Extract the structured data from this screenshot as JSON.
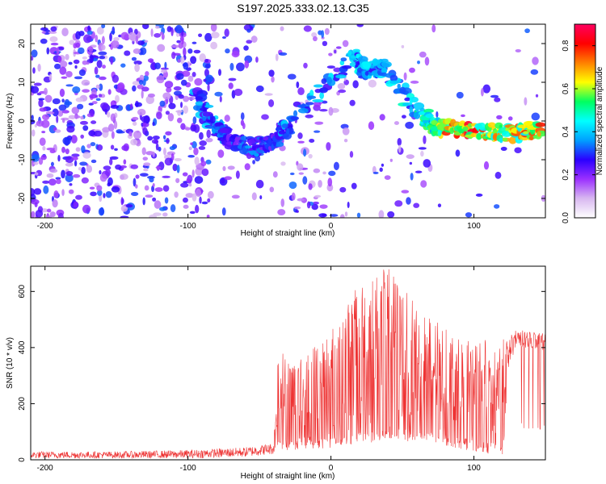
{
  "title": "S197.2025.333.02.13.C35",
  "chart_data": [
    {
      "type": "heatmap",
      "name": "spectrogram",
      "xlabel": "Height of straight line (km)",
      "ylabel": "Frequency (Hz)",
      "xlim": [
        -210,
        150
      ],
      "ylim": [
        -25,
        25
      ],
      "xticks": [
        -200,
        -100,
        0,
        100
      ],
      "yticks": [
        -20,
        -10,
        0,
        10,
        20
      ],
      "colorbar": {
        "label": "Normalized spectral amplitude",
        "range": [
          0,
          0.9
        ],
        "ticks": [
          0.0,
          0.2,
          0.4,
          0.6,
          0.8
        ],
        "colors": [
          "#ffffff",
          "#d8b8f0",
          "#9b30ff",
          "#2a00ff",
          "#00a0ff",
          "#00ffff",
          "#00ff60",
          "#ffff00",
          "#ff8000",
          "#ff0000",
          "#ff0060"
        ]
      },
      "ridge": [
        {
          "x": -95,
          "f": 7,
          "amp": 0.35
        },
        {
          "x": -80,
          "f": -2,
          "amp": 0.4
        },
        {
          "x": -70,
          "f": -5,
          "amp": 0.3
        },
        {
          "x": -55,
          "f": -7,
          "amp": 0.35
        },
        {
          "x": -40,
          "f": -5,
          "amp": 0.3
        },
        {
          "x": -30,
          "f": -1,
          "amp": 0.4
        },
        {
          "x": 15,
          "f": 17,
          "amp": 0.4
        },
        {
          "x": 25,
          "f": 13,
          "amp": 0.45
        },
        {
          "x": 35,
          "f": 14,
          "amp": 0.4
        },
        {
          "x": 65,
          "f": 1,
          "amp": 0.5
        },
        {
          "x": 75,
          "f": -2,
          "amp": 0.6
        },
        {
          "x": 90,
          "f": -2,
          "amp": 0.85
        },
        {
          "x": 110,
          "f": -3,
          "amp": 0.7
        },
        {
          "x": 130,
          "f": -3,
          "amp": 0.7
        },
        {
          "x": 145,
          "f": -2.5,
          "amp": 0.75
        }
      ]
    },
    {
      "type": "line",
      "name": "snr",
      "xlabel": "Height of straight line (km)",
      "ylabel": "SNR (10 * v/v)",
      "xlim": [
        -210,
        150
      ],
      "ylim": [
        0,
        690
      ],
      "xticks": [
        -200,
        -100,
        0,
        100
      ],
      "yticks": [
        0,
        200,
        400,
        600
      ],
      "color": "#ee3333",
      "envelope": {
        "x": [
          -210,
          -150,
          -100,
          -60,
          -40,
          -37,
          -30,
          -20,
          -10,
          0,
          10,
          20,
          30,
          40,
          50,
          60,
          70,
          80,
          90,
          100,
          110,
          120,
          125,
          130,
          140,
          150
        ],
        "low": [
          5,
          5,
          5,
          10,
          20,
          40,
          30,
          40,
          40,
          40,
          50,
          60,
          60,
          70,
          70,
          60,
          60,
          50,
          40,
          30,
          20,
          20,
          250,
          340,
          330,
          320
        ],
        "high": [
          30,
          30,
          35,
          45,
          60,
          420,
          350,
          380,
          420,
          480,
          550,
          630,
          660,
          690,
          620,
          570,
          510,
          470,
          430,
          420,
          430,
          430,
          440,
          470,
          460,
          450
        ]
      }
    }
  ]
}
